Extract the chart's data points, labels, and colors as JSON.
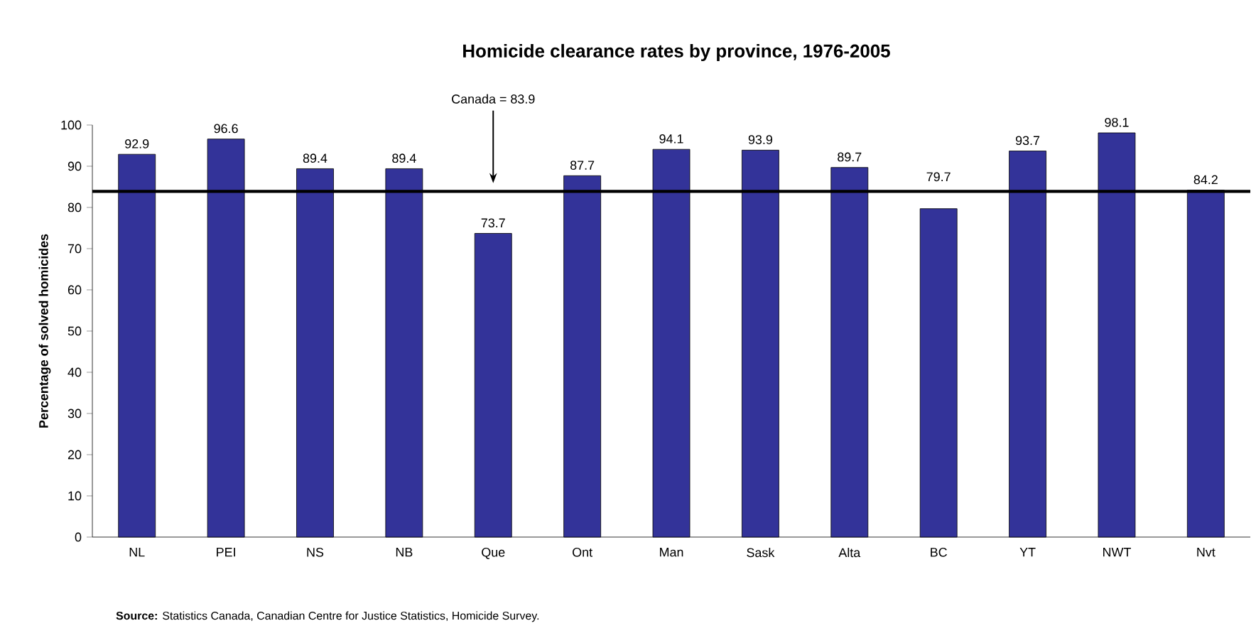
{
  "chart_data": {
    "type": "bar",
    "title": "Homicide clearance rates by province, 1976-2005",
    "ylabel": "Percentage of solved homicides",
    "categories": [
      "NL",
      "PEI",
      "NS",
      "NB",
      "Que",
      "Ont",
      "Man",
      "Sask",
      "Alta",
      "BC",
      "YT",
      "NWT",
      "Nvt"
    ],
    "values": [
      92.9,
      96.6,
      89.4,
      89.4,
      73.7,
      87.7,
      94.1,
      93.9,
      89.7,
      79.7,
      93.7,
      98.1,
      84.2
    ],
    "color": "#333399",
    "ylim": [
      0,
      100
    ],
    "yticks": [
      0,
      10,
      20,
      30,
      40,
      50,
      60,
      70,
      80,
      90,
      100
    ],
    "data_labels": true,
    "ref_lines": [
      {
        "axis": "y",
        "value": 83.9,
        "label": "Canada = 83.9",
        "color": "#000000"
      }
    ],
    "annotations": [
      "**Source:** Statistics Canada, Canadian Centre for Justice Statistics, Homicide Survey."
    ]
  }
}
